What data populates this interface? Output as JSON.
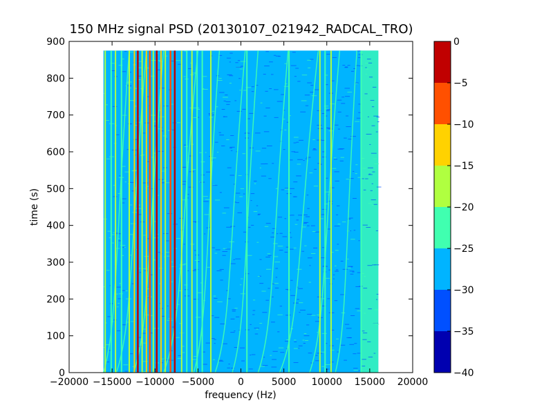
{
  "chart_data": {
    "type": "heatmap",
    "title": "150 MHz signal PSD (20130107_021942_RADCAL_TRO)",
    "xlabel": "frequency (Hz)",
    "ylabel": "time (s)",
    "xlim": [
      -20000,
      20000
    ],
    "ylim": [
      0,
      900
    ],
    "x_ticks": [
      -20000,
      -15000,
      -10000,
      -5000,
      0,
      5000,
      10000,
      15000,
      20000
    ],
    "y_ticks": [
      0,
      100,
      200,
      300,
      400,
      500,
      600,
      700,
      800,
      900
    ],
    "data_extent": {
      "x": [
        -16000,
        16000
      ],
      "y": [
        0,
        875
      ]
    },
    "background_level": -27.5,
    "vertical_lines": [
      {
        "x": -15800,
        "level": -17.5
      },
      {
        "x": -15100,
        "level": -22.5
      },
      {
        "x": -14600,
        "level": -17.5
      },
      {
        "x": -13900,
        "level": -22.5
      },
      {
        "x": -13000,
        "level": -17.5
      },
      {
        "x": -12400,
        "level": -12.5
      },
      {
        "x": -12000,
        "level": -2.5
      },
      {
        "x": -11500,
        "level": -17.5
      },
      {
        "x": -11000,
        "level": -12.5
      },
      {
        "x": -10600,
        "level": -7.5
      },
      {
        "x": -10200,
        "level": -17.5
      },
      {
        "x": -9800,
        "level": -2.5
      },
      {
        "x": -9300,
        "level": -12.5
      },
      {
        "x": -8800,
        "level": -17.5
      },
      {
        "x": -8200,
        "level": -7.5
      },
      {
        "x": -7700,
        "level": -2.5
      },
      {
        "x": -6900,
        "level": -17.5
      },
      {
        "x": -6300,
        "level": -22.5
      },
      {
        "x": -5700,
        "level": -17.5
      },
      {
        "x": -5100,
        "level": -22.5
      },
      {
        "x": -4500,
        "level": -22.5
      },
      {
        "x": -3500,
        "level": -17.5
      },
      {
        "x": 700,
        "level": -22.5
      },
      {
        "x": 5600,
        "level": -22.5
      },
      {
        "x": 9200,
        "level": -17.5
      },
      {
        "x": 9800,
        "level": -22.5
      },
      {
        "x": 10500,
        "level": -17.5
      },
      {
        "x": 14000,
        "level": -22.5
      }
    ],
    "drift_curves": [
      {
        "x_start": -16000,
        "x_end": -13000,
        "level": -22.5
      },
      {
        "x_start": -14500,
        "x_end": -11000,
        "level": -22.5
      },
      {
        "x_start": -12500,
        "x_end": -9000,
        "level": -22.5
      },
      {
        "x_start": -9000,
        "x_end": -5000,
        "level": -22.5
      },
      {
        "x_start": -5500,
        "x_end": -2500,
        "level": -22.5
      },
      {
        "x_start": -3000,
        "x_end": 500,
        "level": -22.5
      },
      {
        "x_start": -1000,
        "x_end": 2000,
        "level": -22.5
      },
      {
        "x_start": 2000,
        "x_end": 5500,
        "level": -22.5
      },
      {
        "x_start": 4500,
        "x_end": 9000,
        "level": -22.5
      },
      {
        "x_start": 8000,
        "x_end": 11500,
        "level": -22.5
      },
      {
        "x_start": 11000,
        "x_end": 13500,
        "level": -22.5
      }
    ],
    "edge_band": {
      "x": [
        14000,
        16000
      ],
      "level": -22.5
    },
    "colorbar": {
      "levels": [
        -40,
        -35,
        -30,
        -25,
        -20,
        -15,
        -10,
        -5,
        0
      ],
      "tick_labels": [
        "−40",
        "−35",
        "−30",
        "−25",
        "−20",
        "−15",
        "−10",
        "−5",
        "0"
      ],
      "colors": [
        "#0000b0",
        "#0050ff",
        "#00b4ff",
        "#40ffb0",
        "#b0ff40",
        "#ffd200",
        "#ff5000",
        "#c00000"
      ]
    },
    "x_tick_labels": [
      "−20000",
      "−15000",
      "−10000",
      "−5000",
      "0",
      "5000",
      "10000",
      "15000",
      "20000"
    ],
    "y_tick_labels": [
      "0",
      "100",
      "200",
      "300",
      "400",
      "500",
      "600",
      "700",
      "800",
      "900"
    ]
  }
}
